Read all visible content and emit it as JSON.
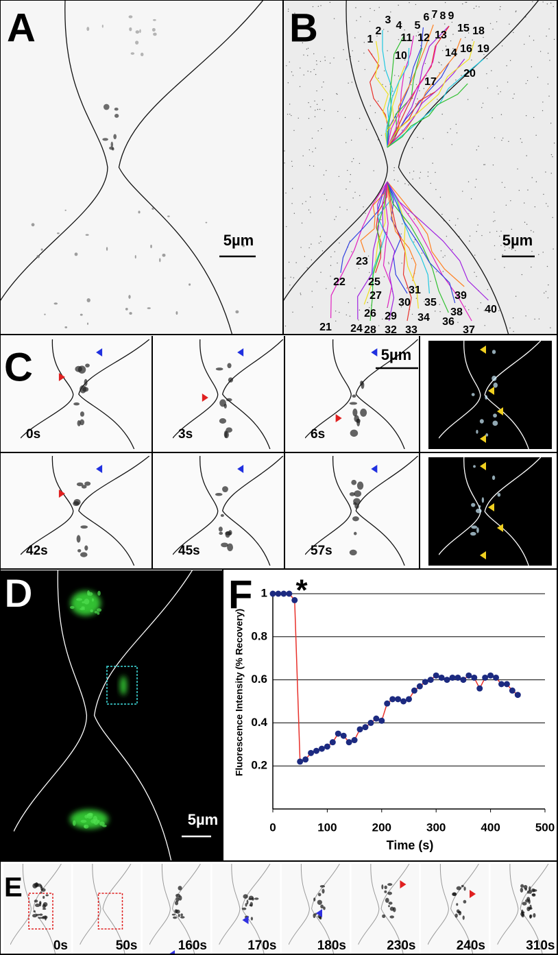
{
  "panels": {
    "A": {
      "label": "A",
      "scale_bar": "5µm"
    },
    "B": {
      "label": "B",
      "scale_bar": "5µm",
      "tracks": [
        "1",
        "2",
        "3",
        "4",
        "5",
        "6",
        "7",
        "8",
        "9",
        "10",
        "11",
        "12",
        "13",
        "14",
        "15",
        "16",
        "17",
        "18",
        "19",
        "20",
        "21",
        "22",
        "23",
        "24",
        "25",
        "26",
        "27",
        "28",
        "29",
        "30",
        "31",
        "32",
        "33",
        "34",
        "35",
        "36",
        "37",
        "38",
        "39",
        "40"
      ]
    },
    "C": {
      "label": "C",
      "scale_bar": "5µm",
      "frames": [
        "0s",
        "3s",
        "6s",
        "42s",
        "45s",
        "57s"
      ]
    },
    "D": {
      "label": "D",
      "scale_bar": "5µm"
    },
    "E": {
      "label": "E",
      "frames": [
        "0s",
        "50s",
        "160s",
        "170s",
        "180s",
        "230s",
        "240s",
        "310s"
      ]
    }
  },
  "chart_data": {
    "type": "line",
    "label": "F",
    "annotation": "*",
    "y_label": "Fluorescence Intensity (% Recovery)",
    "x_label": "Time (s)",
    "x": [
      0,
      10,
      20,
      30,
      40,
      50,
      60,
      70,
      80,
      90,
      100,
      110,
      120,
      130,
      140,
      150,
      160,
      170,
      180,
      190,
      200,
      210,
      220,
      230,
      240,
      250,
      260,
      270,
      280,
      290,
      300,
      310,
      320,
      330,
      340,
      350,
      360,
      370,
      380,
      390,
      400,
      410,
      420,
      430,
      440,
      450
    ],
    "values": [
      1.0,
      1.0,
      1.0,
      1.0,
      0.97,
      0.22,
      0.23,
      0.26,
      0.27,
      0.28,
      0.29,
      0.31,
      0.35,
      0.34,
      0.31,
      0.32,
      0.37,
      0.38,
      0.4,
      0.42,
      0.41,
      0.49,
      0.51,
      0.51,
      0.5,
      0.51,
      0.55,
      0.57,
      0.59,
      0.6,
      0.62,
      0.61,
      0.6,
      0.61,
      0.61,
      0.6,
      0.62,
      0.61,
      0.56,
      0.61,
      0.62,
      0.61,
      0.58,
      0.58,
      0.55,
      0.53
    ],
    "marker_color": "#1c2a80",
    "line_color": "#e8302a",
    "xlim": [
      0,
      500
    ],
    "xticks": [
      0,
      100,
      200,
      300,
      400,
      500
    ],
    "ylim": [
      0,
      1
    ],
    "yticks": [
      0.2,
      0.4,
      0.6,
      0.8,
      1
    ],
    "grid": true
  }
}
